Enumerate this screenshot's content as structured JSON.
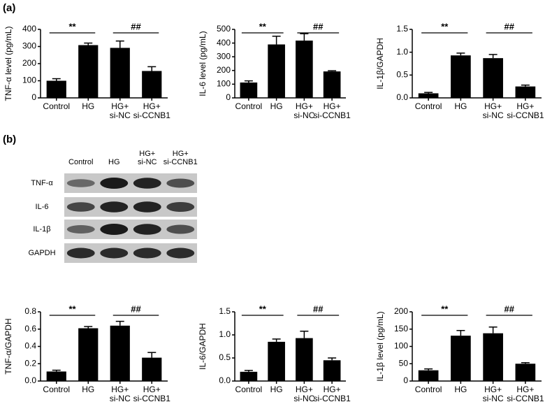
{
  "panels": [
    "(a)",
    "(b)"
  ],
  "blot": {
    "lanes": [
      [
        "Control"
      ],
      [
        "HG"
      ],
      [
        "HG+",
        "si-NC"
      ],
      [
        "HG+",
        "si-CCNB1"
      ]
    ],
    "rows": [
      "TNF-α",
      "IL-6",
      "IL-1β",
      "GAPDH"
    ]
  },
  "chart_data": [
    {
      "type": "bar",
      "ylabel": "TNF-α level (pg/mL)",
      "categories": [
        [
          "Control"
        ],
        [
          "HG"
        ],
        [
          "HG+",
          "si-NC"
        ],
        [
          "HG+",
          "si-CCNB1"
        ]
      ],
      "values": [
        100,
        308,
        292,
        157
      ],
      "errors": [
        12,
        12,
        40,
        25
      ],
      "color": "#000000",
      "ylim": [
        0,
        400
      ],
      "yticks": [
        0,
        100,
        200,
        300,
        400
      ],
      "annotations": [
        "**",
        "##"
      ]
    },
    {
      "type": "bar",
      "ylabel": "IL-6 level (pg/mL)",
      "categories": [
        [
          "Control"
        ],
        [
          "HG"
        ],
        [
          "HG+",
          "si-NC"
        ],
        [
          "HG+",
          "si-CCNB1"
        ]
      ],
      "values": [
        112,
        390,
        418,
        193
      ],
      "errors": [
        12,
        60,
        50,
        5
      ],
      "color": "#000000",
      "ylim": [
        0,
        500
      ],
      "yticks": [
        0,
        100,
        200,
        300,
        400,
        500
      ],
      "annotations": [
        "**",
        "##"
      ]
    },
    {
      "type": "bar",
      "ylabel": "IL-1β/GAPDH",
      "categories": [
        [
          "Control"
        ],
        [
          "HG"
        ],
        [
          "HG+",
          "si-NC"
        ],
        [
          "HG+",
          "si-CCNB1"
        ]
      ],
      "values": [
        0.1,
        0.93,
        0.87,
        0.25
      ],
      "errors": [
        0.02,
        0.05,
        0.08,
        0.03
      ],
      "color": "#000000",
      "ylim": [
        0,
        1.5
      ],
      "yticks": [
        {
          "value": 0,
          "label": "0.0"
        },
        0.5,
        {
          "value": 1,
          "label": "1.0"
        },
        1.5
      ],
      "annotations": [
        "**",
        "##"
      ]
    },
    {
      "type": "bar",
      "ylabel": "TNF-α/GAPDH",
      "categories": [
        [
          "Control"
        ],
        [
          "HG"
        ],
        [
          "HG+",
          "si-NC"
        ],
        [
          "HG+",
          "si-CCNB1"
        ]
      ],
      "values": [
        0.11,
        0.61,
        0.64,
        0.27
      ],
      "errors": [
        0.015,
        0.02,
        0.05,
        0.06
      ],
      "color": "#000000",
      "ylim": [
        0,
        0.8
      ],
      "yticks": [
        {
          "value": 0,
          "label": "0.0"
        },
        0.2,
        0.4,
        0.6,
        0.8
      ],
      "annotations": [
        "**",
        "##"
      ]
    },
    {
      "type": "bar",
      "ylabel": "IL-6/GAPDH",
      "categories": [
        [
          "Control"
        ],
        [
          "HG"
        ],
        [
          "HG+",
          "si-NC"
        ],
        [
          "HG+",
          "si-CCNB1"
        ]
      ],
      "values": [
        0.2,
        0.85,
        0.93,
        0.45
      ],
      "errors": [
        0.03,
        0.06,
        0.15,
        0.05
      ],
      "color": "#000000",
      "ylim": [
        0,
        1.5
      ],
      "yticks": [
        {
          "value": 0,
          "label": "0.0"
        },
        0.5,
        {
          "value": 1,
          "label": "1.0"
        },
        1.5
      ],
      "annotations": [
        "**",
        "##"
      ]
    },
    {
      "type": "bar",
      "ylabel": "IL-1β level (pg/mL)",
      "categories": [
        [
          "Control"
        ],
        [
          "HG"
        ],
        [
          "HG+",
          "si-NC"
        ],
        [
          "HG+",
          "si-CCNB1"
        ]
      ],
      "values": [
        31,
        131,
        138,
        50
      ],
      "errors": [
        4,
        15,
        18,
        3
      ],
      "color": "#000000",
      "ylim": [
        0,
        200
      ],
      "yticks": [
        0,
        50,
        100,
        150,
        200
      ],
      "annotations": [
        "**",
        "##"
      ]
    }
  ]
}
